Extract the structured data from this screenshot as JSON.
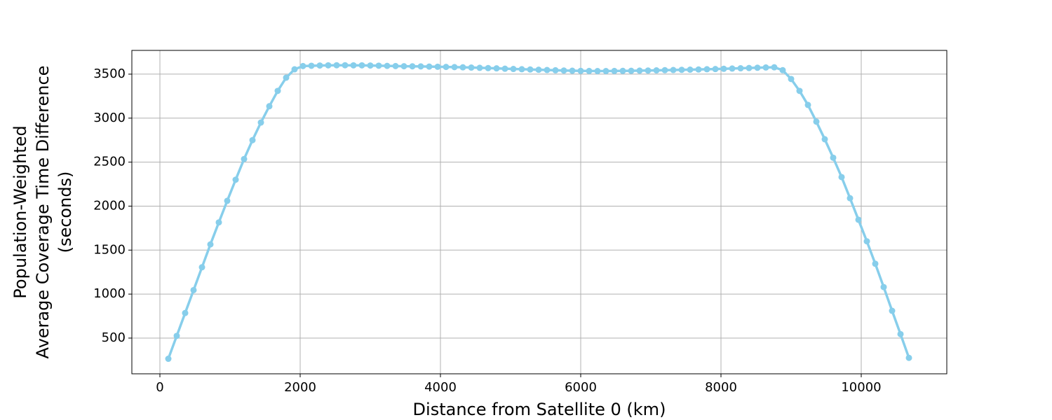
{
  "chart_data": {
    "type": "line",
    "xlabel": "Distance from Satellite 0 (km)",
    "ylabel": [
      "Population-Weighted",
      "Average Coverage Time Difference",
      "(seconds)"
    ],
    "x": [
      120,
      240,
      360,
      480,
      600,
      720,
      840,
      960,
      1080,
      1200,
      1320,
      1440,
      1560,
      1680,
      1800,
      1920,
      2040,
      2160,
      2280,
      2400,
      2520,
      2640,
      2760,
      2880,
      3000,
      3120,
      3240,
      3360,
      3480,
      3600,
      3720,
      3840,
      3960,
      4080,
      4200,
      4320,
      4440,
      4560,
      4680,
      4800,
      4920,
      5040,
      5160,
      5280,
      5400,
      5520,
      5640,
      5760,
      5880,
      6000,
      6120,
      6240,
      6360,
      6480,
      6600,
      6720,
      6840,
      6960,
      7080,
      7200,
      7320,
      7440,
      7560,
      7680,
      7800,
      7920,
      8040,
      8160,
      8280,
      8400,
      8520,
      8640,
      8760,
      8880,
      9000,
      9120,
      9240,
      9360,
      9480,
      9600,
      9720,
      9840,
      9960,
      10080,
      10200,
      10320,
      10440,
      10560,
      10680
    ],
    "values": [
      265,
      525,
      785,
      1045,
      1305,
      1565,
      1815,
      2060,
      2300,
      2535,
      2750,
      2950,
      3135,
      3310,
      3460,
      3555,
      3592,
      3595,
      3598,
      3600,
      3601,
      3601,
      3600,
      3600,
      3598,
      3596,
      3594,
      3592,
      3590,
      3589,
      3588,
      3586,
      3584,
      3582,
      3580,
      3578,
      3575,
      3572,
      3569,
      3566,
      3562,
      3559,
      3556,
      3553,
      3550,
      3547,
      3544,
      3541,
      3539,
      3537,
      3536,
      3535,
      3535,
      3536,
      3537,
      3538,
      3540,
      3541,
      3543,
      3545,
      3547,
      3549,
      3551,
      3553,
      3556,
      3558,
      3561,
      3564,
      3567,
      3570,
      3573,
      3576,
      3578,
      3545,
      3445,
      3310,
      3150,
      2960,
      2760,
      2550,
      2330,
      2090,
      1845,
      1600,
      1345,
      1080,
      810,
      545,
      275
    ],
    "color": "#87ceeb",
    "xlim": [
      -400,
      11220
    ],
    "xticks": [
      0,
      2000,
      4000,
      6000,
      8000,
      10000
    ],
    "ylim": [
      94,
      3770
    ],
    "yticks": [
      500,
      1000,
      1500,
      2000,
      2500,
      3000,
      3500
    ],
    "grid": true
  }
}
